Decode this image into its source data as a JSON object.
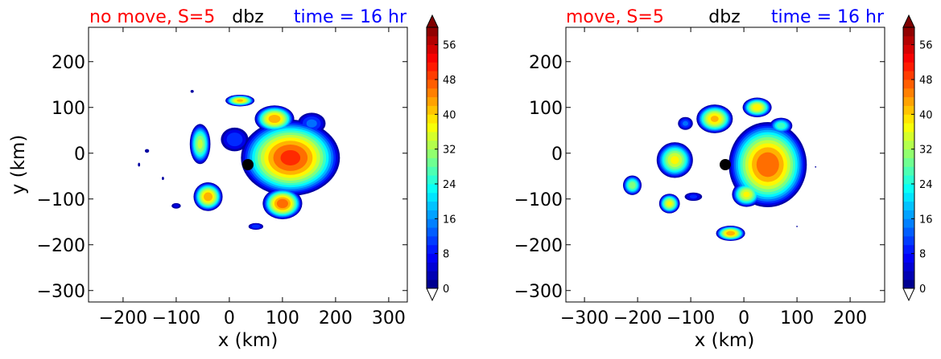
{
  "chart_data": [
    {
      "type": "heatmap",
      "title_left": "no move, S=5",
      "title_center": "dbz",
      "title_right": "time = 16 hr",
      "title_left_color": "#ff0000",
      "title_center_color": "#000000",
      "title_right_color": "#0000ff",
      "xlabel": "x (km)",
      "ylabel": "y (km)",
      "xlim": [
        -265,
        335
      ],
      "ylim": [
        -325,
        275
      ],
      "xticks": [
        -200,
        -100,
        0,
        100,
        200,
        300
      ],
      "xtick_labels": [
        "−200",
        "−100",
        "0",
        "100",
        "200",
        "300"
      ],
      "yticks": [
        -300,
        -200,
        -100,
        0,
        100,
        200
      ],
      "ytick_labels": [
        "−300",
        "−200",
        "−100",
        "0",
        "100",
        "200"
      ],
      "center_marker": {
        "x": 35,
        "y": -25,
        "color": "#000000"
      },
      "colorbar": {
        "ticks": [
          0,
          8,
          16,
          24,
          32,
          40,
          48,
          56
        ],
        "tick_labels": [
          "0",
          "8",
          "16",
          "24",
          "32",
          "40",
          "48",
          "56"
        ],
        "min": 0,
        "max": 60,
        "extend": "both"
      },
      "blobs": [
        {
          "x": 115,
          "y": -10,
          "rx": 95,
          "ry": 85,
          "peak": 52
        },
        {
          "x": 85,
          "y": 75,
          "rx": 38,
          "ry": 30,
          "peak": 46
        },
        {
          "x": 20,
          "y": 115,
          "rx": 28,
          "ry": 13,
          "peak": 44
        },
        {
          "x": 155,
          "y": 65,
          "rx": 28,
          "ry": 25,
          "peak": 16
        },
        {
          "x": 100,
          "y": -110,
          "rx": 38,
          "ry": 35,
          "peak": 50
        },
        {
          "x": -40,
          "y": -95,
          "rx": 28,
          "ry": 32,
          "peak": 46
        },
        {
          "x": -55,
          "y": 20,
          "rx": 20,
          "ry": 45,
          "peak": 36
        },
        {
          "x": 10,
          "y": 30,
          "rx": 28,
          "ry": 28,
          "peak": 14
        },
        {
          "x": 50,
          "y": -160,
          "rx": 15,
          "ry": 8,
          "peak": 14
        },
        {
          "x": -100,
          "y": -115,
          "rx": 10,
          "ry": 7,
          "peak": 8
        },
        {
          "x": -155,
          "y": 5,
          "rx": 5,
          "ry": 5,
          "peak": 6
        },
        {
          "x": -70,
          "y": 135,
          "rx": 4,
          "ry": 4,
          "peak": 5
        },
        {
          "x": -170,
          "y": -25,
          "rx": 3,
          "ry": 6,
          "peak": 4
        },
        {
          "x": -125,
          "y": -55,
          "rx": 3,
          "ry": 5,
          "peak": 4
        }
      ]
    },
    {
      "type": "heatmap",
      "title_left": "move, S=5",
      "title_center": "dbz",
      "title_right": "time = 16 hr",
      "title_left_color": "#ff0000",
      "title_center_color": "#000000",
      "title_right_color": "#0000ff",
      "xlabel": "x (km)",
      "ylabel": "",
      "xlim": [
        -335,
        265
      ],
      "ylim": [
        -325,
        275
      ],
      "xticks": [
        -300,
        -200,
        -100,
        0,
        100,
        200
      ],
      "xtick_labels": [
        "−300",
        "−200",
        "−100",
        "0",
        "100",
        "200"
      ],
      "yticks": [
        -300,
        -200,
        -100,
        0,
        100,
        200
      ],
      "ytick_labels": [
        "−300",
        "−200",
        "−100",
        "0",
        "100",
        "200"
      ],
      "center_marker": {
        "x": -35,
        "y": -25,
        "color": "#000000"
      },
      "colorbar": {
        "ticks": [
          0,
          8,
          16,
          24,
          32,
          40,
          48,
          56
        ],
        "tick_labels": [
          "0",
          "8",
          "16",
          "24",
          "32",
          "40",
          "48",
          "56"
        ],
        "min": 0,
        "max": 60,
        "extend": "both"
      },
      "blobs": [
        {
          "x": 45,
          "y": -25,
          "rx": 75,
          "ry": 95,
          "peak": 50
        },
        {
          "x": 25,
          "y": 100,
          "rx": 28,
          "ry": 22,
          "peak": 42
        },
        {
          "x": -55,
          "y": 75,
          "rx": 35,
          "ry": 32,
          "peak": 44
        },
        {
          "x": -130,
          "y": -15,
          "rx": 35,
          "ry": 40,
          "peak": 40
        },
        {
          "x": -140,
          "y": -110,
          "rx": 20,
          "ry": 22,
          "peak": 40
        },
        {
          "x": -210,
          "y": -70,
          "rx": 18,
          "ry": 22,
          "peak": 34
        },
        {
          "x": -25,
          "y": -175,
          "rx": 28,
          "ry": 17,
          "peak": 46
        },
        {
          "x": 5,
          "y": -90,
          "rx": 28,
          "ry": 28,
          "peak": 40
        },
        {
          "x": 70,
          "y": 60,
          "rx": 22,
          "ry": 18,
          "peak": 30
        },
        {
          "x": -110,
          "y": 65,
          "rx": 15,
          "ry": 15,
          "peak": 16
        },
        {
          "x": -95,
          "y": -95,
          "rx": 18,
          "ry": 10,
          "peak": 12
        },
        {
          "x": 95,
          "y": -80,
          "rx": 3,
          "ry": 6,
          "peak": 5
        },
        {
          "x": 135,
          "y": -30,
          "rx": 2,
          "ry": 2,
          "peak": 4
        },
        {
          "x": 100,
          "y": -160,
          "rx": 2,
          "ry": 2,
          "peak": 4
        }
      ]
    }
  ]
}
